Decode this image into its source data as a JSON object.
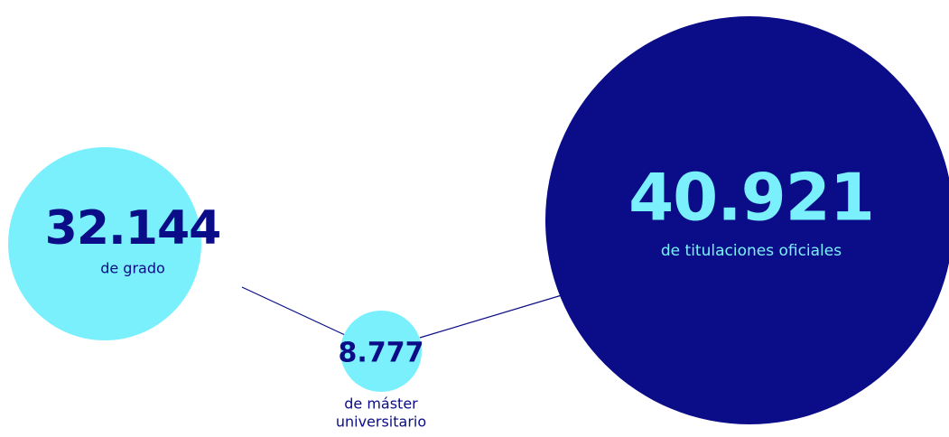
{
  "nodes": [
    {
      "value": "32.144",
      "label": [
        "de grado"
      ]
    },
    {
      "value": "8.777",
      "label": [
        "de máster",
        "universitario"
      ]
    },
    {
      "value": "40.921",
      "label": [
        "de titulaciones oficiales"
      ]
    }
  ]
}
